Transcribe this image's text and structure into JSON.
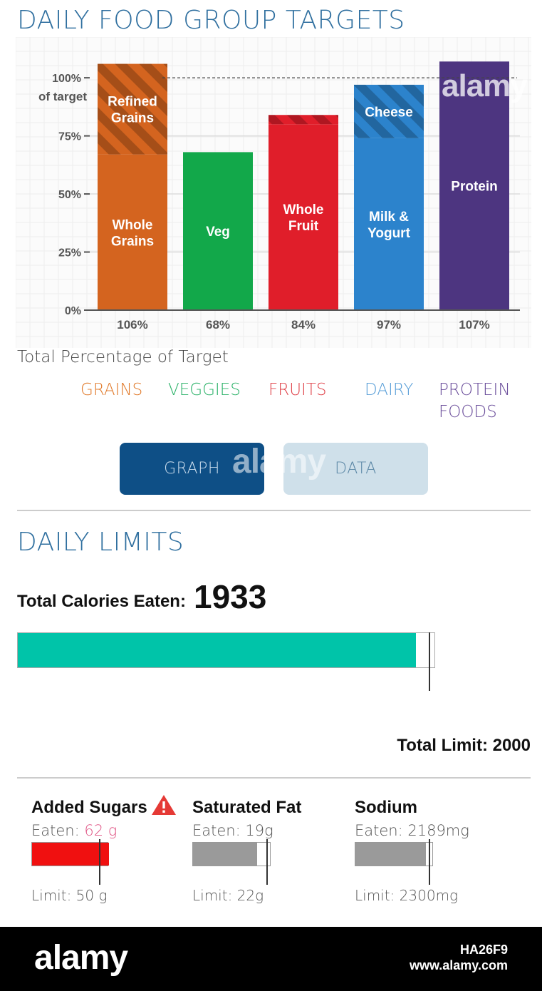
{
  "targets": {
    "title": "DAILY FOOD GROUP TARGETS",
    "caption": "Total Percentage of Target",
    "legend": [
      {
        "label": "GRAINS",
        "color": "#e17b2c"
      },
      {
        "label": "VEGGIES",
        "color": "#2fb36b"
      },
      {
        "label": "FRUITS",
        "color": "#e0444b"
      },
      {
        "label": "DAIRY",
        "color": "#5a9fd8"
      },
      {
        "label": "PROTEIN FOODS",
        "color": "#6b4e9b"
      }
    ],
    "graph_label": "GRAPH",
    "data_label": "DATA"
  },
  "chart_data": {
    "type": "bar",
    "categories": [
      "GRAINS",
      "VEGGIES",
      "FRUITS",
      "DAIRY",
      "PROTEIN FOODS"
    ],
    "values": [
      106,
      68,
      84,
      97,
      107
    ],
    "value_labels": [
      "106%",
      "68%",
      "84%",
      "97%",
      "107%"
    ],
    "segments": [
      [
        {
          "label": "Whole Grains",
          "value": 67,
          "color": "#d4641f",
          "hatched": false
        },
        {
          "label": "Refined Grains",
          "value": 39,
          "color": "#d4641f",
          "hatched": true
        }
      ],
      [
        {
          "label": "Veg",
          "value": 68,
          "color": "#12a84a",
          "hatched": false
        }
      ],
      [
        {
          "label": "Whole Fruit",
          "value": 80,
          "color": "#e01e2a",
          "hatched": false
        },
        {
          "label": "",
          "value": 4,
          "color": "#e01e2a",
          "hatched": true
        }
      ],
      [
        {
          "label": "Milk & Yogurt",
          "value": 74,
          "color": "#2c83cc",
          "hatched": false
        },
        {
          "label": "Cheese",
          "value": 23,
          "color": "#2c83cc",
          "hatched": true
        }
      ],
      [
        {
          "label": "Protein",
          "value": 107,
          "color": "#4d3580",
          "hatched": false
        }
      ]
    ],
    "yticks": [
      {
        "value": 0,
        "label": "0%"
      },
      {
        "value": 25,
        "label": "25%"
      },
      {
        "value": 50,
        "label": "50%"
      },
      {
        "value": 75,
        "label": "75%"
      },
      {
        "value": 100,
        "label": "100%"
      }
    ],
    "y_target_label": "of target",
    "ylim": [
      0,
      112
    ],
    "target_line": 100,
    "grid": true
  },
  "limits": {
    "title": "DAILY LIMITS",
    "calories_label": "Total Calories Eaten:",
    "calories_value": "1933",
    "calories_eaten": 1933,
    "calories_limit": 2000,
    "total_limit_text": "Total Limit: 2000",
    "bar_color": "#00c4a9",
    "nutrients": [
      {
        "name": "Added Sugars",
        "eaten_prefix": "Eaten: ",
        "eaten_value": "62 g",
        "eaten_color": "#e05585",
        "limit_text": "Limit: 50 g",
        "eaten": 62,
        "limit": 50,
        "fill_color": "#f01010",
        "warning": true
      },
      {
        "name": "Saturated Fat",
        "eaten_prefix": "Eaten: ",
        "eaten_value": "19g",
        "eaten_color": "#555555",
        "limit_text": "Limit: 22g",
        "eaten": 19,
        "limit": 22,
        "fill_color": "#9a9a9a",
        "warning": false
      },
      {
        "name": "Sodium",
        "eaten_prefix": "Eaten: ",
        "eaten_value": "2189mg",
        "eaten_color": "#555555",
        "limit_text": "Limit: 2300mg",
        "eaten": 2189,
        "limit": 2300,
        "fill_color": "#9a9a9a",
        "warning": false
      }
    ]
  },
  "footer": {
    "logo": "alamy",
    "image_id": "HA26F9",
    "url": "www.alamy.com"
  },
  "watermark": "alamy"
}
